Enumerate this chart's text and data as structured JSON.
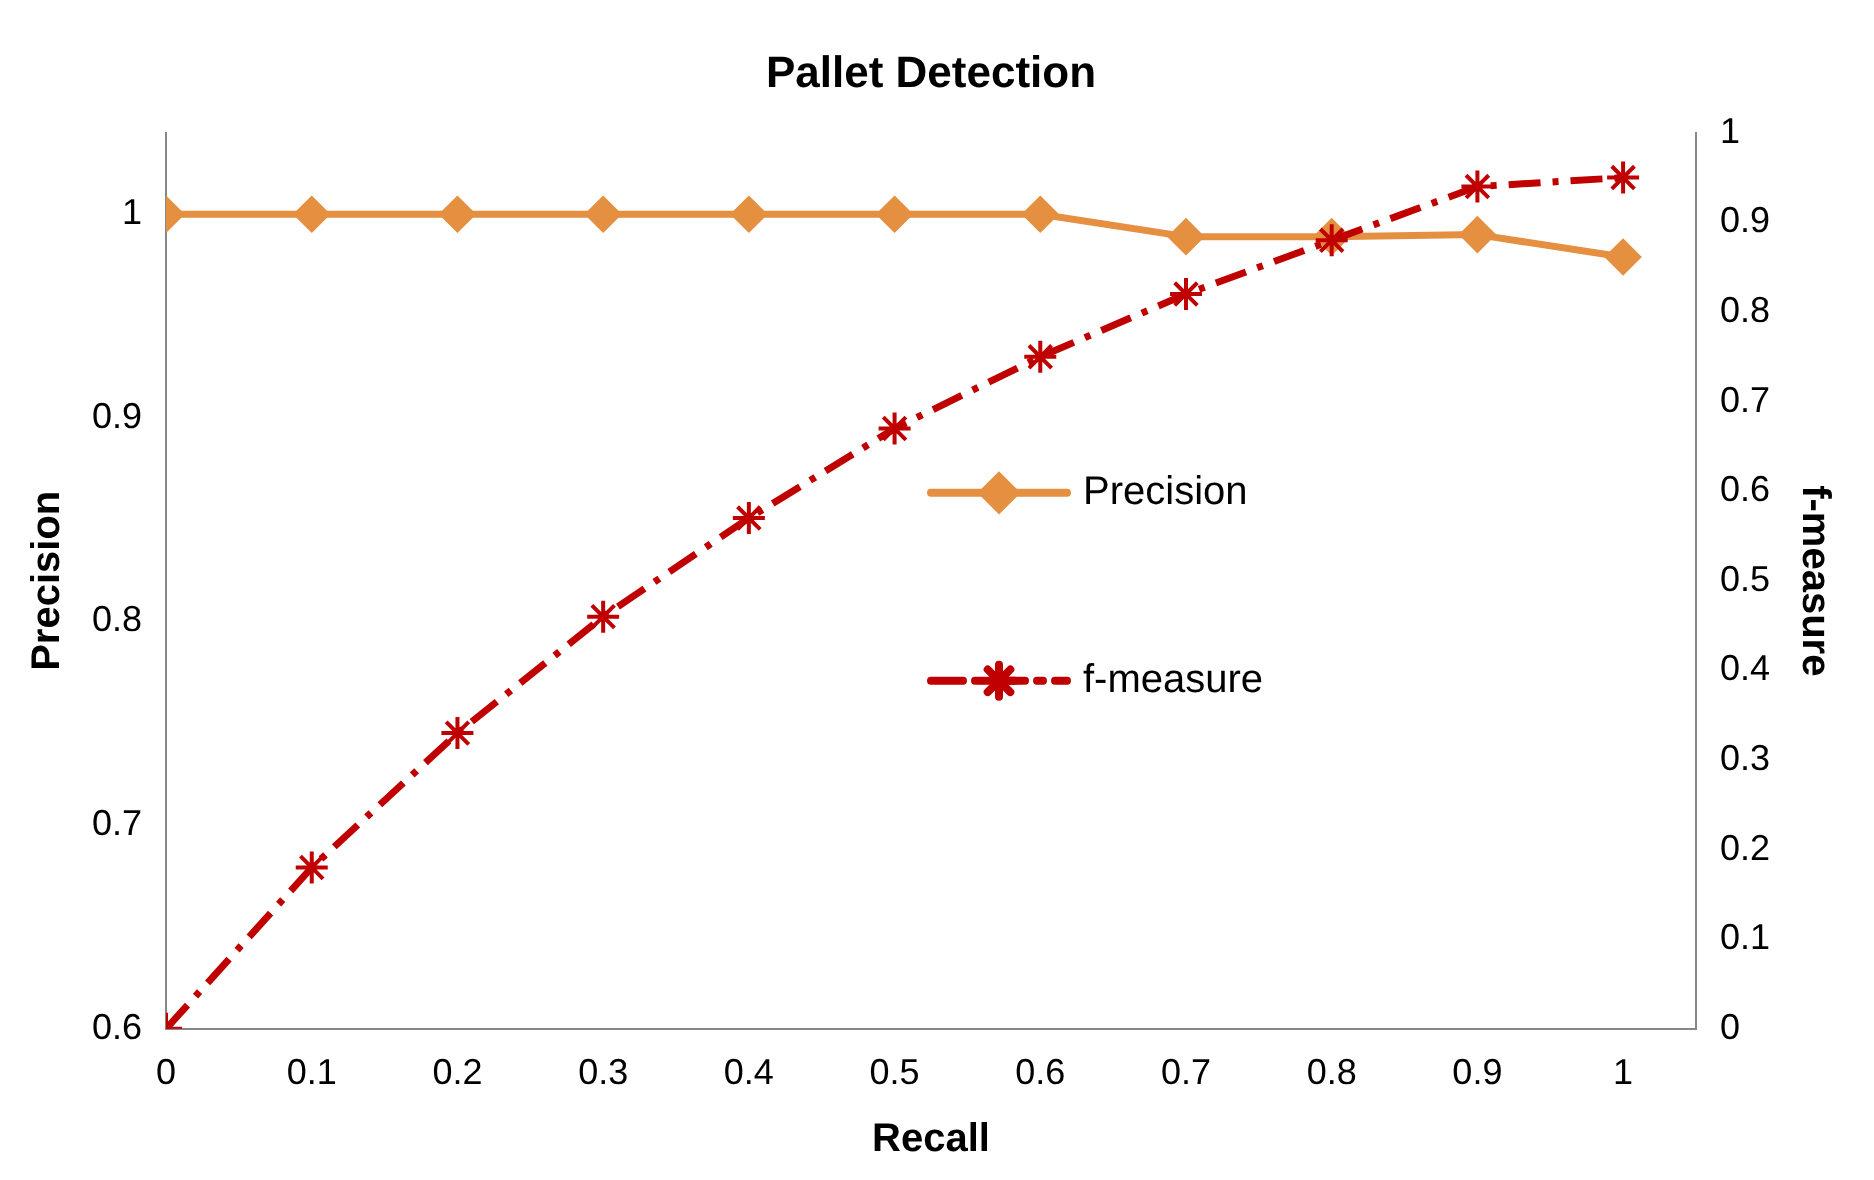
{
  "chart_data": {
    "type": "line",
    "title": "Pallet Detection",
    "xlabel": "Recall",
    "ylabel": "Precision",
    "y2label": "f-measure",
    "x": [
      0,
      0.1,
      0.2,
      0.3,
      0.4,
      0.5,
      0.6,
      0.7,
      0.8,
      0.9,
      1
    ],
    "xlim": [
      0,
      1.05
    ],
    "xticks": [
      0,
      0.1,
      0.2,
      0.3,
      0.4,
      0.5,
      0.6,
      0.7,
      0.8,
      0.9,
      1
    ],
    "ylim": [
      0.6,
      1.04
    ],
    "yticks": [
      0.6,
      0.7,
      0.8,
      0.9,
      1
    ],
    "y2lim": [
      0,
      1
    ],
    "y2ticks": [
      0,
      0.1,
      0.2,
      0.3,
      0.4,
      0.5,
      0.6,
      0.7,
      0.8,
      0.9,
      1
    ],
    "grid": false,
    "legend": "center",
    "series": [
      {
        "name": "Precision",
        "color": "#e59040",
        "marker": "diamond",
        "line_style": "solid",
        "values": [
          1,
          1,
          1,
          1,
          1,
          1,
          1,
          0.989,
          0.989,
          0.99,
          0.979
        ]
      },
      {
        "name": "f-measure",
        "color": "#c00000",
        "marker": "cross",
        "line_style": "dashed",
        "axis": "y2",
        "values": [
          0,
          0.18,
          0.33,
          0.46,
          0.57,
          0.67,
          0.75,
          0.82,
          0.88,
          0.94,
          0.95
        ]
      }
    ]
  }
}
